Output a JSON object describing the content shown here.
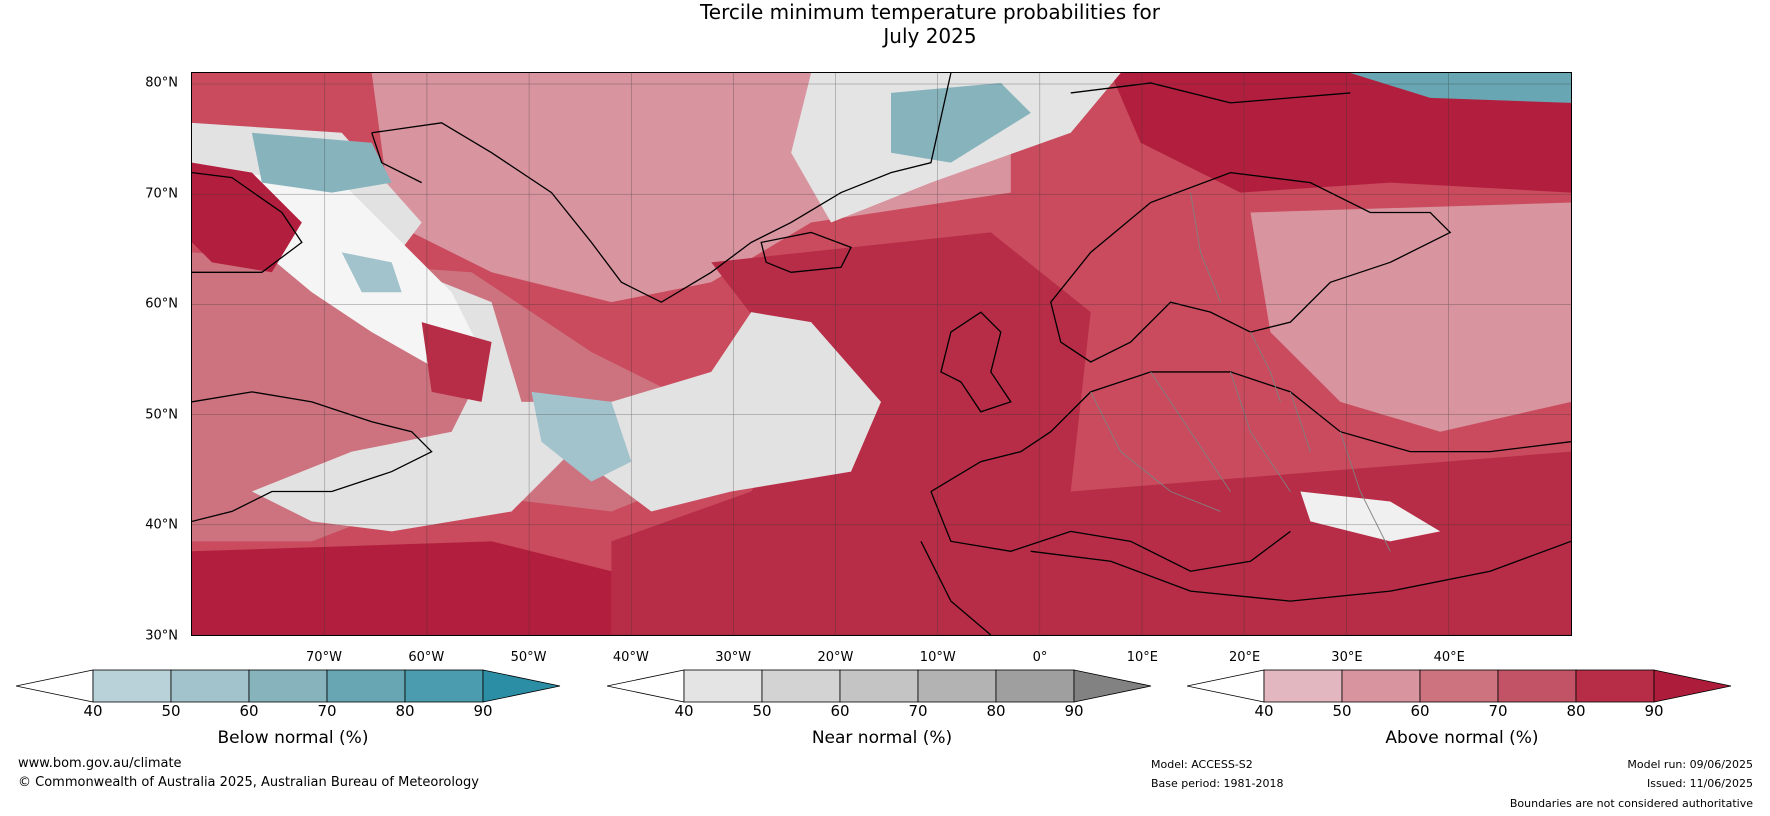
{
  "title_line1": "Tercile minimum temperature probabilities for",
  "title_line2": "July 2025",
  "map": {
    "extent": {
      "lon": [
        -83,
        52
      ],
      "lat": [
        30,
        81
      ]
    },
    "lat_labels": [
      {
        "value": 80,
        "text": "80°N"
      },
      {
        "value": 70,
        "text": "70°N"
      },
      {
        "value": 60,
        "text": "60°N"
      },
      {
        "value": 50,
        "text": "50°N"
      },
      {
        "value": 40,
        "text": "40°N"
      },
      {
        "value": 30,
        "text": "30°N"
      }
    ],
    "lon_labels": [
      {
        "value": -70,
        "text": "70°W"
      },
      {
        "value": -60,
        "text": "60°W"
      },
      {
        "value": -50,
        "text": "50°W"
      },
      {
        "value": -40,
        "text": "40°W"
      },
      {
        "value": -30,
        "text": "30°W"
      },
      {
        "value": -20,
        "text": "20°W"
      },
      {
        "value": -10,
        "text": "10°W"
      },
      {
        "value": 0,
        "text": "0°"
      },
      {
        "value": 10,
        "text": "10°E"
      },
      {
        "value": 20,
        "text": "20°E"
      },
      {
        "value": 30,
        "text": "30°E"
      },
      {
        "value": 40,
        "text": "40°E"
      }
    ],
    "ocean_color": "#c0404f",
    "land_color": "#c63a51"
  },
  "colorbars": [
    {
      "title": "Below normal (%)",
      "ticks": [
        "40",
        "50",
        "60",
        "70",
        "80",
        "90"
      ],
      "colors": [
        "#ffffff",
        "#b9d1d8",
        "#a2c3cc",
        "#87b3bd",
        "#67a6b2",
        "#4a9cae",
        "#2b8ea4"
      ]
    },
    {
      "title": "Near normal (%)",
      "ticks": [
        "40",
        "50",
        "60",
        "70",
        "80",
        "90"
      ],
      "colors": [
        "#ffffff",
        "#e4e4e4",
        "#d3d3d3",
        "#c4c4c4",
        "#b3b3b3",
        "#9f9f9f",
        "#828282"
      ]
    },
    {
      "title": "Above normal (%)",
      "ticks": [
        "40",
        "50",
        "60",
        "70",
        "80",
        "90"
      ],
      "colors": [
        "#ffffff",
        "#e3b7bf",
        "#d8949f",
        "#cd737f",
        "#c25366",
        "#b72d47",
        "#ae1c3b"
      ]
    }
  ],
  "footer": {
    "website": "www.bom.gov.au/climate",
    "copyright": "© Commonwealth of Australia 2025, Australian Bureau of Meteorology",
    "model": "Model: ACCESS-S2",
    "base_period": "Base period: 1981-2018",
    "model_run": "Model run: 09/06/2025",
    "issued": "Issued: 11/06/2025",
    "disclaimer": "Boundaries are not considered authoritative"
  }
}
